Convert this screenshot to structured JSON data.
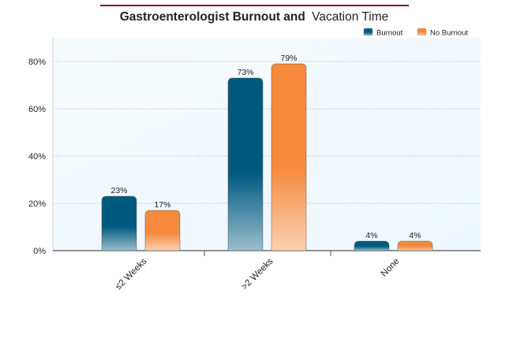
{
  "chart_data": {
    "type": "bar",
    "title_bold": "Gastroenterologist Burnout and",
    "title_regular": "Vacation Time",
    "categories": [
      "≤2 Weeks",
      ">2 Weeks",
      "None"
    ],
    "series": [
      {
        "name": "Burnout",
        "values": [
          23,
          73,
          4
        ],
        "color": "#005a80"
      },
      {
        "name": "No Burnout",
        "values": [
          17,
          79,
          4
        ],
        "color": "#f58a3c"
      }
    ],
    "value_suffix": "%",
    "ylim": [
      0,
      90
    ],
    "yticks": [
      0,
      20,
      40,
      60,
      80
    ],
    "ytick_labels": [
      "0%",
      "20%",
      "40%",
      "60%",
      "80%"
    ],
    "grid": true,
    "legend_position": "top-right",
    "colors": {
      "title_rule": "#7a1a33",
      "plot_bg": "#eef7fd",
      "grid": "#a9b3ba",
      "axis": "#555555"
    }
  }
}
